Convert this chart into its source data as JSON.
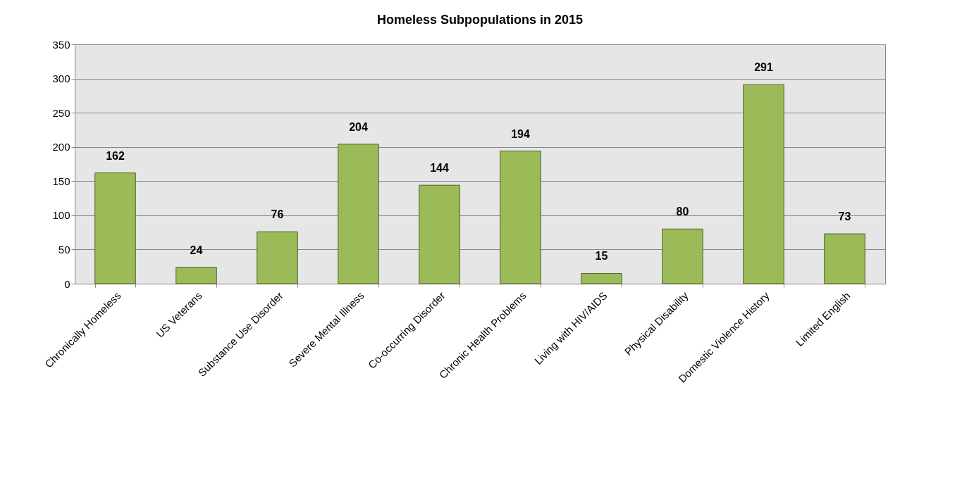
{
  "chart_data": {
    "type": "bar",
    "title": "Homeless Subpopulations in 2015",
    "categories": [
      "Chronically Homeless",
      "US Veterans",
      "Substance Use Disorder",
      "Severe Mental Illness",
      "Co-occurring Disorder",
      "Chronic Health Problems",
      "Living with HIV/AIDS",
      "Physical Disability",
      "Domestic Violence History",
      "Limited English"
    ],
    "values": [
      162,
      24,
      76,
      204,
      144,
      194,
      15,
      80,
      291,
      73
    ],
    "color": "#9bbb59",
    "ylim": [
      0,
      350
    ],
    "yticks": [
      0,
      50,
      100,
      150,
      200,
      250,
      300,
      350
    ],
    "grid": "y",
    "data_labels": true
  }
}
